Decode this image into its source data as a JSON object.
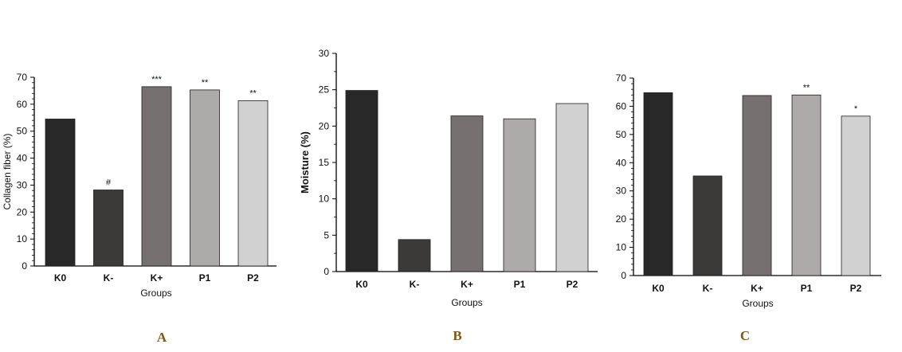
{
  "chart_data": [
    {
      "type": "bar",
      "panel_label": "A",
      "categories": [
        "K0",
        "K-",
        "K+",
        "P1",
        "P2"
      ],
      "values": [
        54.5,
        28.2,
        66.5,
        65.3,
        61.3
      ],
      "annotations": [
        "",
        "#",
        "***",
        "**",
        "**"
      ],
      "colors": [
        "#282828",
        "#3b3a38",
        "#767170",
        "#aeaaa9",
        "#d2d1d2"
      ],
      "xlabel": "Groups",
      "ylabel": "Collagen fiber  (%)",
      "ylim": [
        0,
        70
      ],
      "yticks": [
        0,
        10,
        20,
        30,
        40,
        50,
        60,
        70
      ],
      "grid": false
    },
    {
      "type": "bar",
      "panel_label": "B",
      "categories": [
        "K0",
        "K-",
        "K+",
        "P1",
        "P2"
      ],
      "values": [
        24.9,
        4.4,
        21.4,
        21.0,
        23.1
      ],
      "annotations": [
        "",
        "",
        "",
        "",
        ""
      ],
      "colors": [
        "#282828",
        "#3b3a38",
        "#767170",
        "#aeaaa9",
        "#d2d1d2"
      ],
      "xlabel": "Groups",
      "ylabel": "Moisture  (%)",
      "ylim": [
        0,
        30
      ],
      "yticks": [
        0,
        5,
        10,
        15,
        20,
        25,
        30
      ],
      "grid": false
    },
    {
      "type": "bar",
      "panel_label": "C",
      "categories": [
        "K0",
        "K-",
        "K+",
        "P1",
        "P2"
      ],
      "values": [
        64.8,
        35.3,
        63.8,
        64.0,
        56.5
      ],
      "annotations": [
        "",
        "",
        "",
        "**",
        "*"
      ],
      "colors": [
        "#282828",
        "#3b3a38",
        "#767170",
        "#aeaaa9",
        "#d2d1d2"
      ],
      "xlabel": "Groups",
      "ylabel": "",
      "ylim": [
        0,
        70
      ],
      "yticks": [
        0,
        10,
        20,
        30,
        40,
        50,
        60,
        70
      ],
      "grid": false
    }
  ]
}
